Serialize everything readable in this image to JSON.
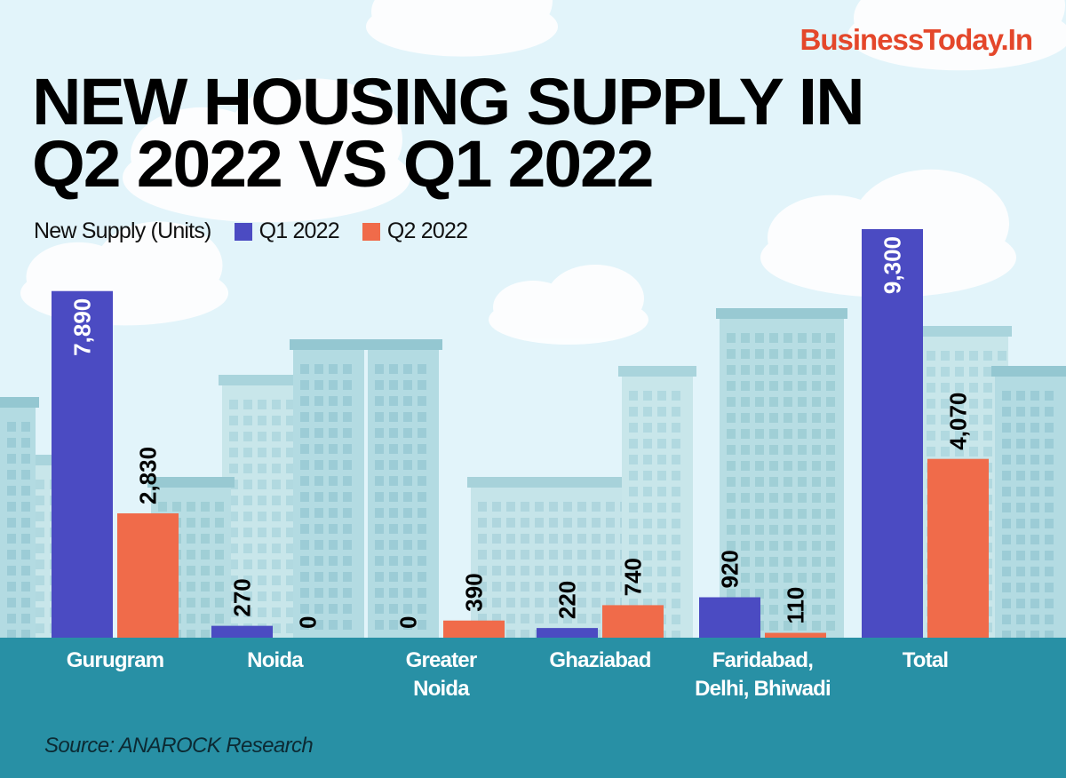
{
  "brand": "BusinessToday.In",
  "title_lines": [
    "NEW HOUSING SUPPLY IN",
    "Q2 2022 VS Q1 2022"
  ],
  "source": "Source: ANAROCK Research",
  "colors": {
    "q1": "#4b4bc2",
    "q2": "#f06b4a",
    "brand": "#e4472b",
    "ground": "#2890a5",
    "sky": "#e2f4fa"
  },
  "chart_data": {
    "type": "bar",
    "title": "NEW HOUSING SUPPLY IN Q2 2022 VS Q1 2022",
    "ylabel": "New Supply (Units)",
    "xlabel": "",
    "categories": [
      "Gurugram",
      "Noida",
      "Greater\nNoida",
      "Ghaziabad",
      "Faridabad,\nDelhi, Bhiwadi",
      "Total"
    ],
    "series": [
      {
        "name": "Q1 2022",
        "color": "#4b4bc2",
        "values": [
          7890,
          270,
          0,
          220,
          920,
          9300
        ],
        "labels": [
          "7,890",
          "270",
          "0",
          "220",
          "920",
          "9,300"
        ]
      },
      {
        "name": "Q2 2022",
        "color": "#f06b4a",
        "values": [
          2830,
          0,
          390,
          740,
          110,
          4070
        ],
        "labels": [
          "2,830",
          "0",
          "390",
          "740",
          "110",
          "4,070"
        ]
      }
    ],
    "ylim": [
      0,
      9300
    ],
    "grid": false,
    "legend": "top-left",
    "legend_title": "New Supply (Units)",
    "value_labels": "rotated vertical"
  }
}
